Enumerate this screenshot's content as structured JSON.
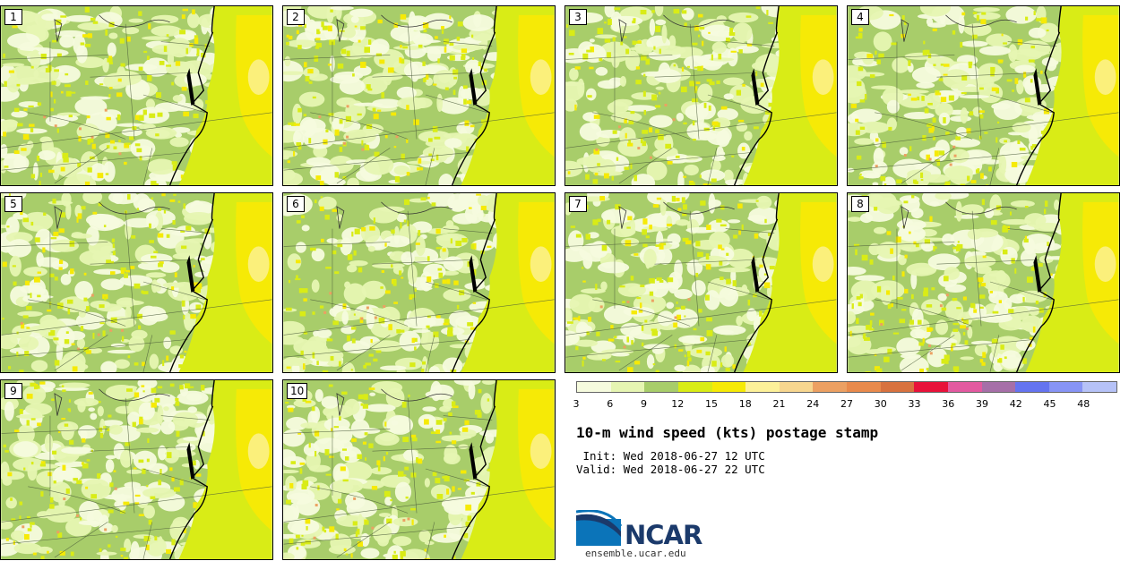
{
  "panels": [
    {
      "label": "1"
    },
    {
      "label": "2"
    },
    {
      "label": "3"
    },
    {
      "label": "4"
    },
    {
      "label": "5"
    },
    {
      "label": "6"
    },
    {
      "label": "7"
    },
    {
      "label": "8"
    },
    {
      "label": "9"
    },
    {
      "label": "10"
    }
  ],
  "colorbar": {
    "colors": [
      "#f6fbde",
      "#e6f5b2",
      "#a8cd6a",
      "#d9ec16",
      "#f6ea06",
      "#fdf199",
      "#f7d68f",
      "#eca062",
      "#e98a4c",
      "#d8723f",
      "#e8123a",
      "#e35aa0",
      "#a66fa8",
      "#6574f0",
      "#8794f5",
      "#b6c2f7"
    ],
    "ticks": [
      "3",
      "6",
      "9",
      "12",
      "15",
      "18",
      "21",
      "24",
      "27",
      "30",
      "33",
      "36",
      "39",
      "42",
      "45",
      "48"
    ]
  },
  "title": "10-m wind speed (kts) postage stamp",
  "init_line": " Init: Wed 2018-06-27 12 UTC",
  "valid_line": "Valid: Wed 2018-06-27 22 UTC",
  "logo": {
    "text": "NCAR",
    "url": "ensemble.ucar.edu",
    "icon": "ncar-logo-icon"
  }
}
